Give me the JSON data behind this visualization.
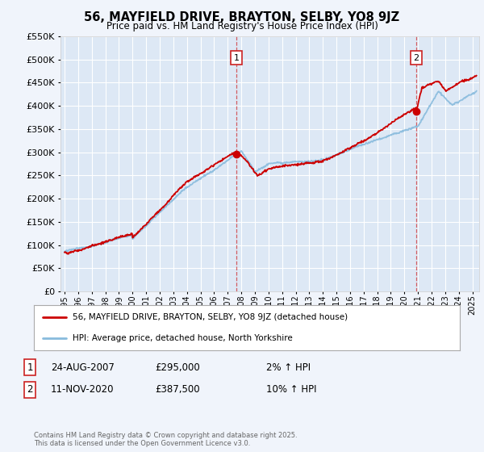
{
  "title": "56, MAYFIELD DRIVE, BRAYTON, SELBY, YO8 9JZ",
  "subtitle": "Price paid vs. HM Land Registry's House Price Index (HPI)",
  "bg_color": "#f0f4fb",
  "plot_bg_color": "#dde8f5",
  "grid_color": "#ffffff",
  "line1_color": "#cc0000",
  "line2_color": "#88bbdd",
  "ylim": [
    0,
    550000
  ],
  "yticks": [
    0,
    50000,
    100000,
    150000,
    200000,
    250000,
    300000,
    350000,
    400000,
    450000,
    500000,
    550000
  ],
  "xlim_start": 1994.7,
  "xlim_end": 2025.5,
  "marker1_x": 2007.65,
  "marker1_y": 295000,
  "marker2_x": 2020.87,
  "marker2_y": 387500,
  "marker1_label": "1",
  "marker2_label": "2",
  "annotation1_date": "24-AUG-2007",
  "annotation1_price": "£295,000",
  "annotation1_hpi": "2% ↑ HPI",
  "annotation2_date": "11-NOV-2020",
  "annotation2_price": "£387,500",
  "annotation2_hpi": "10% ↑ HPI",
  "legend_label1": "56, MAYFIELD DRIVE, BRAYTON, SELBY, YO8 9JZ (detached house)",
  "legend_label2": "HPI: Average price, detached house, North Yorkshire",
  "footer": "Contains HM Land Registry data © Crown copyright and database right 2025.\nThis data is licensed under the Open Government Licence v3.0.",
  "xticks": [
    1995,
    1996,
    1997,
    1998,
    1999,
    2000,
    2001,
    2002,
    2003,
    2004,
    2005,
    2006,
    2007,
    2008,
    2009,
    2010,
    2011,
    2012,
    2013,
    2014,
    2015,
    2016,
    2017,
    2018,
    2019,
    2020,
    2021,
    2022,
    2023,
    2024,
    2025
  ]
}
